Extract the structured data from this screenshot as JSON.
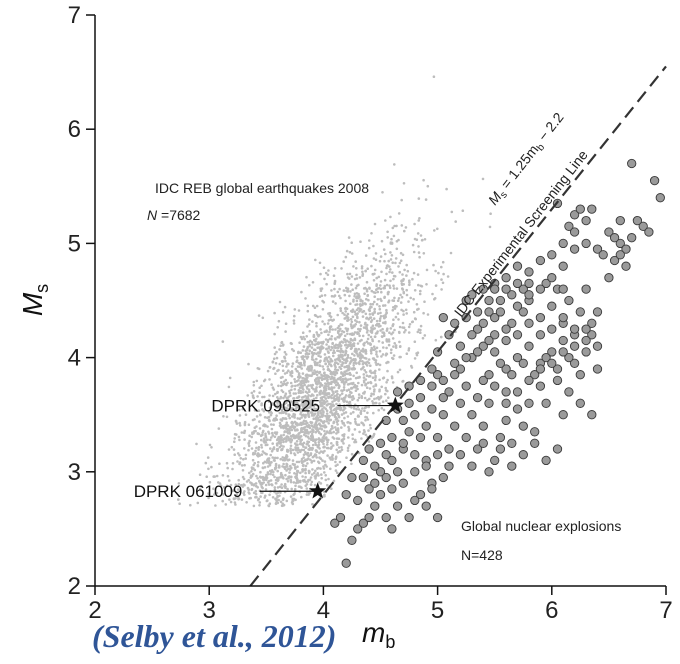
{
  "chart_data": {
    "type": "scatter",
    "xlabel_main": "m",
    "xlabel_sub": "b",
    "ylabel_main": "M",
    "ylabel_sub": "s",
    "xlim": [
      2,
      7
    ],
    "ylim": [
      2,
      7
    ],
    "xticks": [
      "2",
      "3",
      "4",
      "5",
      "6",
      "7"
    ],
    "yticks": [
      "2",
      "3",
      "4",
      "5",
      "6",
      "7"
    ],
    "grid": false,
    "screening_line": {
      "label": "M",
      "label_sub": "s",
      "label_eq": " = 1.25m",
      "label_eq_sub": "b",
      "label_tail": " − 2.2",
      "label2": "IDC Experimental Screening Line",
      "slope": 1.25,
      "intercept": -2.2
    },
    "earthquakes": {
      "label": "IDC REB global earthquakes 2008",
      "count_label": "N",
      "count_value": " =7682",
      "n": 7682,
      "center": [
        3.95,
        3.6
      ],
      "color": "#bdbdbd"
    },
    "explosions": {
      "label": "Global nuclear explosions",
      "count_label": "N=428",
      "n": 428,
      "color": "#9a9a9a",
      "points": [
        [
          4.1,
          2.55
        ],
        [
          4.15,
          2.6
        ],
        [
          4.2,
          2.2
        ],
        [
          4.25,
          2.4
        ],
        [
          4.3,
          2.5
        ],
        [
          4.35,
          2.55
        ],
        [
          4.4,
          2.6
        ],
        [
          4.45,
          2.7
        ],
        [
          4.5,
          2.8
        ],
        [
          4.4,
          2.85
        ],
        [
          4.55,
          2.6
        ],
        [
          4.6,
          2.5
        ],
        [
          4.65,
          2.7
        ],
        [
          4.7,
          2.9
        ],
        [
          4.75,
          2.6
        ],
        [
          4.5,
          3.0
        ],
        [
          4.6,
          3.1
        ],
        [
          4.7,
          3.2
        ],
        [
          4.8,
          3.0
        ],
        [
          4.85,
          2.8
        ],
        [
          4.9,
          3.1
        ],
        [
          4.95,
          2.9
        ],
        [
          5.0,
          2.6
        ],
        [
          4.7,
          3.45
        ],
        [
          4.8,
          3.5
        ],
        [
          4.9,
          3.4
        ],
        [
          5.0,
          3.3
        ],
        [
          5.05,
          3.5
        ],
        [
          5.1,
          3.2
        ],
        [
          5.15,
          3.4
        ],
        [
          4.65,
          3.7
        ],
        [
          4.75,
          3.6
        ],
        [
          4.85,
          3.65
        ],
        [
          4.95,
          3.75
        ],
        [
          5.0,
          3.85
        ],
        [
          5.1,
          3.7
        ],
        [
          5.2,
          3.6
        ],
        [
          5.25,
          3.3
        ],
        [
          5.3,
          3.5
        ],
        [
          5.35,
          3.2
        ],
        [
          5.4,
          3.4
        ],
        [
          5.45,
          3.6
        ],
        [
          5.5,
          3.1
        ],
        [
          5.55,
          3.3
        ],
        [
          5.6,
          3.45
        ],
        [
          5.65,
          3.25
        ],
        [
          5.7,
          3.55
        ],
        [
          5.75,
          3.4
        ],
        [
          5.8,
          3.6
        ],
        [
          5.85,
          3.35
        ],
        [
          5.2,
          3.9
        ],
        [
          5.3,
          4.0
        ],
        [
          5.4,
          4.1
        ],
        [
          5.5,
          4.2
        ],
        [
          5.35,
          4.25
        ],
        [
          5.25,
          4.35
        ],
        [
          5.45,
          4.4
        ],
        [
          5.55,
          4.5
        ],
        [
          5.65,
          4.3
        ],
        [
          5.75,
          4.4
        ],
        [
          5.8,
          4.5
        ],
        [
          5.9,
          4.35
        ],
        [
          6.0,
          4.45
        ],
        [
          6.05,
          4.6
        ],
        [
          6.1,
          4.3
        ],
        [
          6.15,
          4.5
        ],
        [
          6.2,
          4.2
        ],
        [
          6.25,
          4.4
        ],
        [
          6.3,
          4.6
        ],
        [
          6.35,
          4.3
        ],
        [
          5.6,
          3.9
        ],
        [
          5.7,
          4.0
        ],
        [
          5.8,
          4.1
        ],
        [
          5.9,
          3.95
        ],
        [
          6.0,
          4.05
        ],
        [
          6.1,
          4.15
        ],
        [
          6.2,
          3.95
        ],
        [
          6.3,
          4.05
        ],
        [
          6.35,
          4.2
        ],
        [
          6.4,
          3.9
        ],
        [
          5.5,
          3.75
        ],
        [
          5.6,
          3.7
        ],
        [
          5.9,
          3.75
        ],
        [
          6.05,
          3.8
        ],
        [
          6.15,
          3.7
        ],
        [
          6.25,
          3.6
        ],
        [
          6.35,
          3.5
        ],
        [
          5.4,
          3.8
        ],
        [
          5.95,
          3.6
        ],
        [
          6.1,
          3.5
        ],
        [
          5.5,
          4.65
        ],
        [
          5.6,
          4.7
        ],
        [
          5.7,
          4.8
        ],
        [
          5.8,
          4.75
        ],
        [
          5.9,
          4.85
        ],
        [
          6.0,
          4.9
        ],
        [
          6.1,
          4.8
        ],
        [
          6.2,
          4.95
        ],
        [
          5.75,
          4.6
        ],
        [
          5.95,
          4.65
        ],
        [
          6.15,
          5.15
        ],
        [
          6.2,
          5.25
        ],
        [
          6.25,
          5.3
        ],
        [
          6.3,
          5.2
        ],
        [
          6.35,
          5.3
        ],
        [
          6.05,
          5.35
        ],
        [
          6.1,
          5.0
        ],
        [
          6.3,
          5.0
        ],
        [
          6.2,
          5.1
        ],
        [
          6.4,
          4.95
        ],
        [
          6.45,
          4.9
        ],
        [
          6.5,
          5.1
        ],
        [
          6.55,
          4.85
        ],
        [
          6.6,
          5.0
        ],
        [
          6.65,
          4.95
        ],
        [
          6.7,
          5.05
        ],
        [
          6.5,
          4.7
        ],
        [
          6.65,
          4.8
        ],
        [
          6.7,
          5.7
        ],
        [
          6.9,
          5.55
        ],
        [
          6.8,
          5.15
        ],
        [
          6.85,
          5.1
        ],
        [
          6.95,
          5.4
        ],
        [
          6.75,
          5.2
        ],
        [
          6.6,
          4.9
        ],
        [
          6.55,
          5.05
        ],
        [
          6.6,
          5.2
        ],
        [
          5.3,
          4.55
        ],
        [
          5.1,
          4.2
        ],
        [
          5.0,
          4.05
        ],
        [
          5.15,
          3.95
        ],
        [
          5.05,
          3.65
        ],
        [
          4.95,
          3.55
        ],
        [
          4.85,
          3.3
        ],
        [
          4.75,
          3.35
        ],
        [
          4.8,
          3.15
        ],
        [
          4.9,
          3.05
        ],
        [
          5.0,
          3.15
        ],
        [
          5.1,
          3.05
        ],
        [
          5.2,
          3.15
        ],
        [
          5.3,
          3.05
        ],
        [
          5.4,
          3.25
        ],
        [
          5.45,
          3.0
        ],
        [
          5.55,
          3.2
        ],
        [
          5.65,
          3.05
        ],
        [
          5.75,
          3.15
        ],
        [
          5.85,
          3.25
        ],
        [
          5.95,
          3.1
        ],
        [
          6.05,
          3.2
        ],
        [
          5.25,
          3.75
        ],
        [
          5.35,
          3.65
        ],
        [
          5.45,
          3.85
        ],
        [
          5.55,
          3.95
        ],
        [
          5.65,
          3.85
        ],
        [
          5.75,
          3.95
        ],
        [
          5.85,
          3.85
        ],
        [
          5.95,
          4.0
        ],
        [
          6.05,
          3.9
        ],
        [
          6.15,
          4.0
        ],
        [
          6.25,
          3.85
        ],
        [
          5.2,
          4.1
        ],
        [
          5.3,
          4.2
        ],
        [
          5.4,
          4.3
        ],
        [
          5.5,
          4.35
        ],
        [
          5.6,
          4.25
        ],
        [
          5.7,
          4.2
        ],
        [
          5.8,
          4.3
        ],
        [
          5.9,
          4.2
        ],
        [
          6.0,
          4.25
        ],
        [
          6.1,
          4.35
        ],
        [
          6.2,
          4.25
        ],
        [
          6.3,
          4.15
        ],
        [
          6.4,
          4.1
        ],
        [
          5.6,
          4.15
        ],
        [
          5.7,
          4.45
        ],
        [
          5.8,
          4.55
        ],
        [
          5.9,
          4.6
        ],
        [
          6.0,
          4.7
        ],
        [
          6.1,
          4.6
        ],
        [
          5.65,
          4.55
        ],
        [
          5.5,
          4.05
        ],
        [
          5.45,
          4.15
        ],
        [
          5.35,
          4.05
        ],
        [
          5.25,
          4.0
        ],
        [
          5.15,
          3.85
        ],
        [
          5.05,
          3.8
        ],
        [
          4.95,
          3.9
        ],
        [
          4.85,
          3.8
        ],
        [
          4.75,
          3.75
        ],
        [
          4.65,
          3.55
        ],
        [
          4.55,
          3.45
        ],
        [
          4.6,
          3.3
        ],
        [
          4.7,
          3.25
        ],
        [
          4.5,
          3.25
        ],
        [
          4.55,
          3.15
        ],
        [
          4.45,
          3.05
        ],
        [
          4.35,
          2.95
        ],
        [
          4.45,
          2.9
        ],
        [
          4.55,
          2.95
        ],
        [
          4.65,
          3.0
        ],
        [
          4.3,
          2.75
        ],
        [
          4.2,
          2.8
        ],
        [
          4.25,
          2.95
        ],
        [
          4.35,
          3.1
        ],
        [
          4.4,
          3.2
        ],
        [
          4.6,
          2.85
        ],
        [
          4.8,
          2.75
        ],
        [
          4.9,
          2.7
        ],
        [
          4.95,
          2.85
        ],
        [
          5.05,
          2.95
        ],
        [
          5.6,
          3.6
        ],
        [
          5.7,
          3.7
        ],
        [
          5.8,
          3.8
        ],
        [
          5.9,
          3.9
        ],
        [
          6.0,
          3.95
        ],
        [
          6.1,
          4.05
        ],
        [
          6.2,
          4.1
        ],
        [
          6.3,
          4.25
        ],
        [
          6.4,
          4.4
        ],
        [
          5.55,
          4.4
        ],
        [
          5.45,
          4.5
        ],
        [
          5.35,
          4.4
        ],
        [
          5.25,
          4.5
        ],
        [
          5.15,
          4.3
        ],
        [
          5.05,
          4.35
        ],
        [
          5.4,
          4.6
        ],
        [
          5.5,
          4.6
        ],
        [
          5.6,
          4.6
        ],
        [
          5.7,
          4.65
        ],
        [
          5.8,
          4.65
        ]
      ]
    },
    "highlighted": [
      {
        "label": "DPRK 090525",
        "x": 4.63,
        "y": 3.58
      },
      {
        "label": "DPRK 061009",
        "x": 3.95,
        "y": 2.83
      }
    ]
  },
  "citation": "(Selby et al., 2012)"
}
